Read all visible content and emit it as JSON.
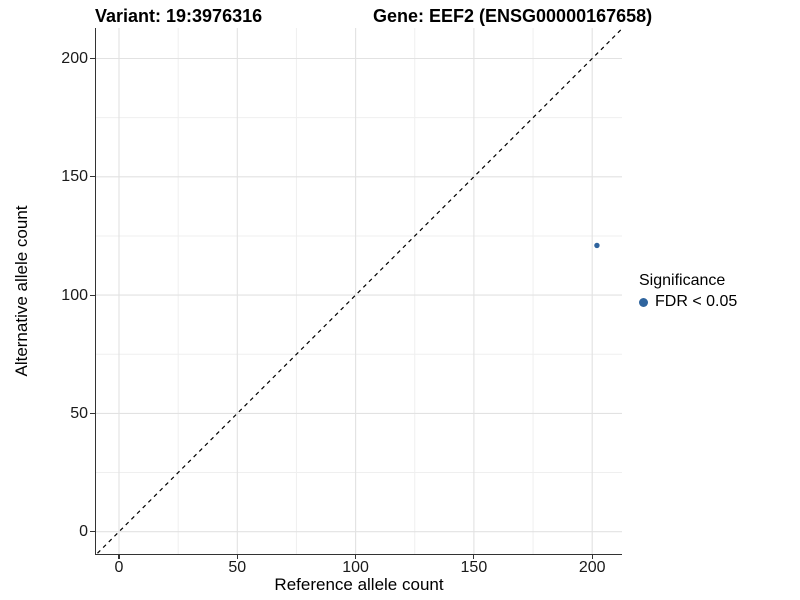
{
  "figure": {
    "title_variant": "Variant: 19:3976316",
    "title_gene": "Gene: EEF2 (ENSG00000167658)"
  },
  "chart_data": {
    "type": "scatter",
    "title": "Variant: 19:3976316 — Gene: EEF2 (ENSG00000167658)",
    "xlabel": "Reference allele count",
    "ylabel": "Alternative allele count",
    "xlim": [
      -10,
      213
    ],
    "ylim": [
      -10,
      213
    ],
    "x_ticks": [
      0,
      50,
      100,
      150,
      200
    ],
    "y_ticks": [
      0,
      50,
      100,
      150,
      200
    ],
    "x_minor_gridlines": [
      25,
      75,
      125,
      175
    ],
    "y_minor_gridlines": [
      25,
      75,
      125,
      175
    ],
    "grid": "major and minor, light gray",
    "legend_position": "right",
    "identity_line": {
      "style": "dashed",
      "slope": 1,
      "intercept": 0,
      "color": "#000000"
    },
    "series": [
      {
        "name": "FDR < 0.05",
        "color": "#2F649E",
        "points": [
          {
            "x": 202,
            "y": 121
          }
        ]
      }
    ],
    "legend": {
      "title": "Significance",
      "entries": [
        {
          "label": "FDR < 0.05",
          "color": "#2F649E",
          "marker": "circle"
        }
      ]
    }
  },
  "colors": {
    "background": "#FFFFFF",
    "grid_major": "#E2E2E2",
    "grid_minor": "#EFEFEF",
    "axis": "#333333",
    "tick_text": "#1A1A1A",
    "title_text": "#000000",
    "point": "#2F649E"
  }
}
